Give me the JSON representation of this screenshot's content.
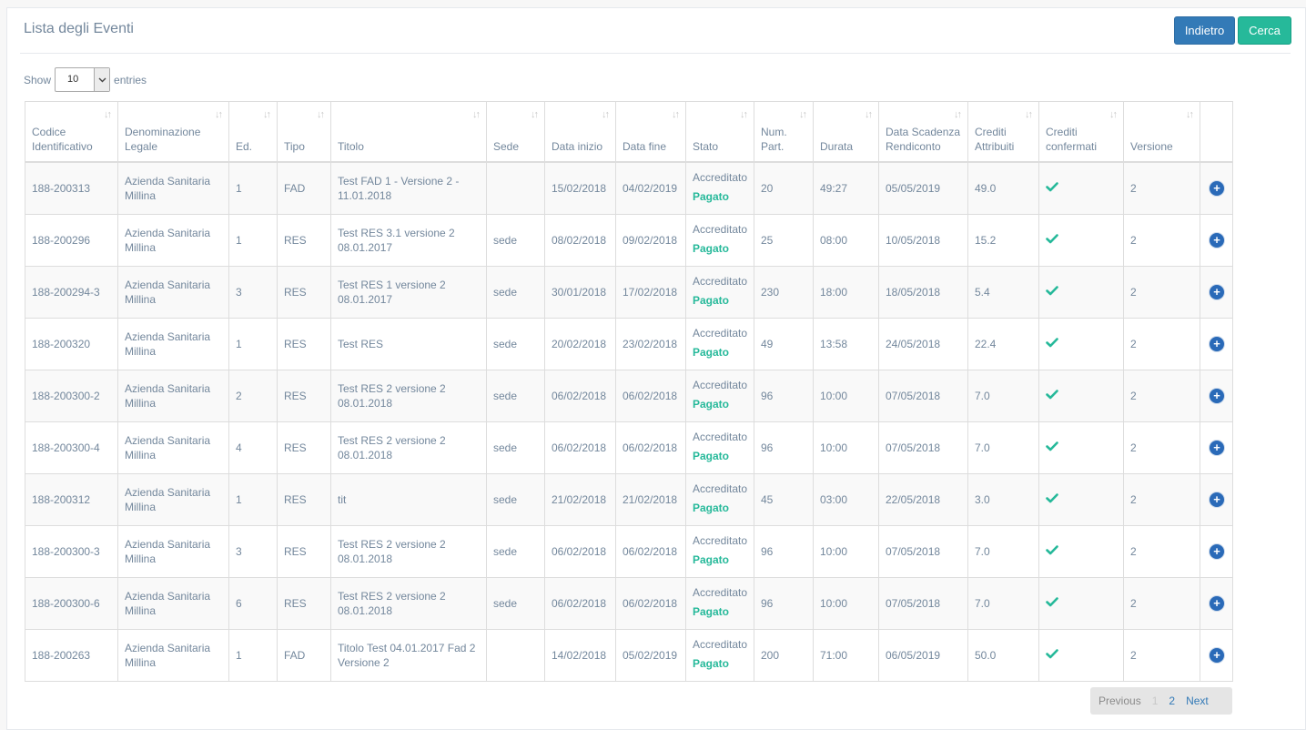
{
  "page": {
    "title": "Lista degli Eventi",
    "buttons": {
      "back": "Indietro",
      "search": "Cerca"
    }
  },
  "length": {
    "show": "Show",
    "value": "10",
    "entries": "entries"
  },
  "table": {
    "headers": [
      "Codice Identificativo",
      "Denominazione Legale",
      "Ed.",
      "Tipo",
      "Titolo",
      "Sede",
      "Data inizio",
      "Data fine",
      "Stato",
      "Num. Part.",
      "Durata",
      "Data Scadenza Rendiconto",
      "Crediti Attribuiti",
      "Crediti confermati",
      "Versione"
    ],
    "rows": [
      {
        "codice": "188-200313",
        "denominazione": "Azienda Sanitaria Millina",
        "ed": "1",
        "tipo": "FAD",
        "titolo": "Test FAD 1 - Versione 2 - 11.01.2018",
        "sede": "",
        "inizio": "15/02/2018",
        "fine": "04/02/2019",
        "stato": "Accreditato",
        "pagamento": "Pagato",
        "part": "20",
        "durata": "49:27",
        "scadenza": "05/05/2019",
        "crediti": "49.0",
        "versione": "2"
      },
      {
        "codice": "188-200296",
        "denominazione": "Azienda Sanitaria Millina",
        "ed": "1",
        "tipo": "RES",
        "titolo": "Test RES 3.1 versione 2 08.01.2017",
        "sede": "sede",
        "inizio": "08/02/2018",
        "fine": "09/02/2018",
        "stato": "Accreditato",
        "pagamento": "Pagato",
        "part": "25",
        "durata": "08:00",
        "scadenza": "10/05/2018",
        "crediti": "15.2",
        "versione": "2"
      },
      {
        "codice": "188-200294-3",
        "denominazione": "Azienda Sanitaria Millina",
        "ed": "3",
        "tipo": "RES",
        "titolo": "Test RES 1 versione 2 08.01.2017",
        "sede": "sede",
        "inizio": "30/01/2018",
        "fine": "17/02/2018",
        "stato": "Accreditato",
        "pagamento": "Pagato",
        "part": "230",
        "durata": "18:00",
        "scadenza": "18/05/2018",
        "crediti": "5.4",
        "versione": "2"
      },
      {
        "codice": "188-200320",
        "denominazione": "Azienda Sanitaria Millina",
        "ed": "1",
        "tipo": "RES",
        "titolo": "Test RES",
        "sede": "sede",
        "inizio": "20/02/2018",
        "fine": "23/02/2018",
        "stato": "Accreditato",
        "pagamento": "Pagato",
        "part": "49",
        "durata": "13:58",
        "scadenza": "24/05/2018",
        "crediti": "22.4",
        "versione": "2"
      },
      {
        "codice": "188-200300-2",
        "denominazione": "Azienda Sanitaria Millina",
        "ed": "2",
        "tipo": "RES",
        "titolo": "Test RES 2 versione 2 08.01.2018",
        "sede": "sede",
        "inizio": "06/02/2018",
        "fine": "06/02/2018",
        "stato": "Accreditato",
        "pagamento": "Pagato",
        "part": "96",
        "durata": "10:00",
        "scadenza": "07/05/2018",
        "crediti": "7.0",
        "versione": "2"
      },
      {
        "codice": "188-200300-4",
        "denominazione": "Azienda Sanitaria Millina",
        "ed": "4",
        "tipo": "RES",
        "titolo": "Test RES 2 versione 2 08.01.2018",
        "sede": "sede",
        "inizio": "06/02/2018",
        "fine": "06/02/2018",
        "stato": "Accreditato",
        "pagamento": "Pagato",
        "part": "96",
        "durata": "10:00",
        "scadenza": "07/05/2018",
        "crediti": "7.0",
        "versione": "2"
      },
      {
        "codice": "188-200312",
        "denominazione": "Azienda Sanitaria Millina",
        "ed": "1",
        "tipo": "RES",
        "titolo": "tit",
        "sede": "sede",
        "inizio": "21/02/2018",
        "fine": "21/02/2018",
        "stato": "Accreditato",
        "pagamento": "Pagato",
        "part": "45",
        "durata": "03:00",
        "scadenza": "22/05/2018",
        "crediti": "3.0",
        "versione": "2"
      },
      {
        "codice": "188-200300-3",
        "denominazione": "Azienda Sanitaria Millina",
        "ed": "3",
        "tipo": "RES",
        "titolo": "Test RES 2 versione 2 08.01.2018",
        "sede": "sede",
        "inizio": "06/02/2018",
        "fine": "06/02/2018",
        "stato": "Accreditato",
        "pagamento": "Pagato",
        "part": "96",
        "durata": "10:00",
        "scadenza": "07/05/2018",
        "crediti": "7.0",
        "versione": "2"
      },
      {
        "codice": "188-200300-6",
        "denominazione": "Azienda Sanitaria Millina",
        "ed": "6",
        "tipo": "RES",
        "titolo": "Test RES 2 versione 2 08.01.2018",
        "sede": "sede",
        "inizio": "06/02/2018",
        "fine": "06/02/2018",
        "stato": "Accreditato",
        "pagamento": "Pagato",
        "part": "96",
        "durata": "10:00",
        "scadenza": "07/05/2018",
        "crediti": "7.0",
        "versione": "2"
      },
      {
        "codice": "188-200263",
        "denominazione": "Azienda Sanitaria Millina",
        "ed": "1",
        "tipo": "FAD",
        "titolo": "Titolo Test 04.01.2017 Fad 2 Versione 2",
        "sede": "",
        "inizio": "14/02/2018",
        "fine": "05/02/2019",
        "stato": "Accreditato",
        "pagamento": "Pagato",
        "part": "200",
        "durata": "71:00",
        "scadenza": "06/05/2019",
        "crediti": "50.0",
        "versione": "2"
      }
    ]
  },
  "pagination": {
    "previous": "Previous",
    "page1": "1",
    "page2": "2",
    "next": "Next"
  },
  "icons": {
    "sort": "sort-icon",
    "check": "check-icon",
    "details": "plus-circle-icon",
    "dropdown": "chevron-down-icon"
  },
  "colors": {
    "primary": "#337ab7",
    "success": "#26b99a",
    "text": "#73879c"
  }
}
